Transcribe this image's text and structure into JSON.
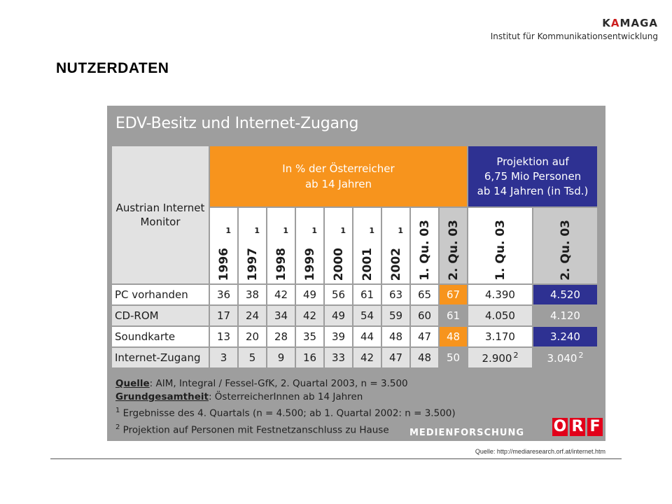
{
  "brand": {
    "name_accent_prefix": "K",
    "name_accent": "A",
    "name_rest": "MAGA",
    "subtitle": "Institut für Kommunikationsentwicklung"
  },
  "page": {
    "title": "NUTZERDATEN"
  },
  "panel": {
    "title": "EDV-Besitz und Internet-Zugang",
    "monitor_label_line1": "Austrian Internet",
    "monitor_label_line2": "Monitor",
    "orange_header_line1": "In % der Österreicher",
    "orange_header_line2": "ab 14 Jahren",
    "blue_header_line1": "Projektion auf",
    "blue_header_line2": "6,75 Mio Personen",
    "blue_header_line3": "ab 14 Jahren (in Tsd.)",
    "columns": [
      {
        "label": "1996",
        "note": "1"
      },
      {
        "label": "1997",
        "note": "1"
      },
      {
        "label": "1998",
        "note": "1"
      },
      {
        "label": "1999",
        "note": "1"
      },
      {
        "label": "2000",
        "note": "1"
      },
      {
        "label": "2001",
        "note": "1"
      },
      {
        "label": "2002",
        "note": "1"
      },
      {
        "label": "1. Qu. 03",
        "note": ""
      },
      {
        "label": "2. Qu. 03",
        "note": ""
      },
      {
        "label": "1. Qu. 03",
        "note": ""
      },
      {
        "label": "2. Qu. 03",
        "note": ""
      }
    ],
    "rows": [
      {
        "label": "PC vorhanden",
        "values": [
          "36",
          "38",
          "42",
          "49",
          "56",
          "61",
          "63",
          "65",
          "67",
          "4.390",
          "4.520"
        ]
      },
      {
        "label": "CD-ROM",
        "values": [
          "17",
          "24",
          "34",
          "42",
          "49",
          "54",
          "59",
          "60",
          "61",
          "4.050",
          "4.120"
        ]
      },
      {
        "label": "Soundkarte",
        "values": [
          "13",
          "20",
          "28",
          "35",
          "39",
          "44",
          "48",
          "47",
          "48",
          "3.170",
          "3.240"
        ]
      },
      {
        "label": "Internet-Zugang",
        "values": [
          "3",
          "5",
          "9",
          "16",
          "33",
          "42",
          "47",
          "48",
          "50",
          "2.900",
          "3.040"
        ],
        "proj_note": "2"
      }
    ],
    "notes": {
      "source_label": "Quelle",
      "source_text": ": AIM, Integral / Fessel-GfK, 2. Quartal 2003, n = 3.500",
      "base_label": "Grundgesamtheit",
      "base_text": ": ÖsterreicherInnen ab 14 Jahren",
      "note1_mark": "1",
      "note1_text": " Ergebnisse des 4. Quartals (n = 4.500; ab 1. Quartal 2002: n = 3.500)",
      "note2_mark": "2",
      "note2_text": " Projektion auf Personen mit Festnetzanschluss zu Hause"
    },
    "medienforschung": "MEDIENFORSCHUNG",
    "orf_letters": [
      "O",
      "R",
      "F"
    ]
  },
  "footer": {
    "source": "Quelle: http://mediaresearch.orf.at/internet.htm"
  }
}
